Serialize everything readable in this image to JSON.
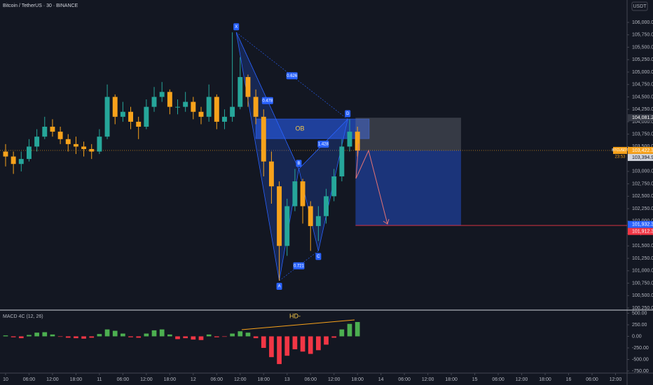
{
  "chart_data": {
    "type": "candlestick",
    "title": "Bitcoin / TetherUS · 30 · BINANCE",
    "currency": "USDT",
    "symbol": "BTCUSDT",
    "countdown": "23:53",
    "up_color": "#26a69a",
    "down_color": "#f7a21b",
    "x": [
      0,
      2,
      4,
      6,
      8,
      10,
      12,
      14,
      16,
      18,
      20,
      22,
      24,
      26,
      28,
      30,
      32,
      34,
      36,
      38,
      40,
      42,
      44,
      46,
      48,
      50,
      52,
      54,
      56,
      58,
      60,
      62,
      64,
      66,
      68,
      70,
      72,
      74,
      76,
      78,
      80,
      82,
      84,
      86,
      88,
      90
    ],
    "open": [
      103400,
      103300,
      103150,
      103250,
      103500,
      103700,
      103900,
      103800,
      103650,
      103550,
      103500,
      103450,
      103400,
      103700,
      104500,
      104100,
      104200,
      104000,
      103900,
      104300,
      104500,
      104600,
      104300,
      104300,
      104400,
      104200,
      104100,
      104500,
      104000,
      104100,
      104300,
      104900,
      104500,
      104100,
      103200,
      102700,
      101500,
      102300,
      102800,
      102300,
      101900,
      102100,
      102500,
      102900,
      103500,
      103800
    ],
    "high": [
      103550,
      103400,
      103400,
      103650,
      103850,
      104100,
      104050,
      103900,
      103750,
      103700,
      103600,
      103550,
      103850,
      104750,
      104550,
      104400,
      104300,
      104100,
      104450,
      104700,
      104800,
      104650,
      104450,
      104600,
      104500,
      104300,
      104750,
      104550,
      104250,
      105800,
      105300,
      104950,
      104650,
      104250,
      103400,
      102800,
      102450,
      103050,
      102850,
      102400,
      102300,
      102650,
      103050,
      103650,
      104050,
      103900
    ],
    "low": [
      103100,
      102950,
      103000,
      103200,
      103400,
      103650,
      103700,
      103550,
      103400,
      103350,
      103300,
      103250,
      103350,
      103650,
      103950,
      104000,
      103850,
      103650,
      103850,
      104200,
      104400,
      104150,
      104150,
      104200,
      104050,
      103950,
      104000,
      103850,
      103850,
      104000,
      104250,
      104300,
      103950,
      102900,
      102350,
      100800,
      101300,
      102200,
      101950,
      101400,
      101600,
      101950,
      102400,
      102800,
      103400,
      103300
    ],
    "close": [
      103300,
      103150,
      103250,
      103500,
      103700,
      103900,
      103800,
      103650,
      103550,
      103500,
      103450,
      103400,
      103700,
      104500,
      104100,
      104200,
      104000,
      103900,
      104300,
      104500,
      104600,
      104300,
      104300,
      104400,
      104200,
      104100,
      104500,
      104000,
      104100,
      104300,
      104900,
      104500,
      104100,
      103200,
      102700,
      101500,
      102300,
      102800,
      102300,
      101900,
      102100,
      102500,
      102900,
      103500,
      103800,
      103420
    ],
    "xlim": [
      -1.43,
      158.96
    ],
    "xticks": [
      {
        "value": 0,
        "label": "10"
      },
      {
        "value": 6,
        "label": "06:00"
      },
      {
        "value": 12,
        "label": "12:00"
      },
      {
        "value": 18,
        "label": "18:00"
      },
      {
        "value": 24,
        "label": "11"
      },
      {
        "value": 30,
        "label": "06:00"
      },
      {
        "value": 36,
        "label": "12:00"
      },
      {
        "value": 42,
        "label": "18:00"
      },
      {
        "value": 48,
        "label": "12"
      },
      {
        "value": 54,
        "label": "06:00"
      },
      {
        "value": 60,
        "label": "12:00"
      },
      {
        "value": 66,
        "label": "18:00"
      },
      {
        "value": 72,
        "label": "13"
      },
      {
        "value": 78,
        "label": "06:00"
      },
      {
        "value": 84,
        "label": "12:00"
      },
      {
        "value": 90,
        "label": "18:00"
      },
      {
        "value": 96,
        "label": "14"
      },
      {
        "value": 102,
        "label": "06:00"
      },
      {
        "value": 108,
        "label": "12:00"
      },
      {
        "value": 114,
        "label": "18:00"
      },
      {
        "value": 120,
        "label": "15"
      },
      {
        "value": 126,
        "label": "06:00"
      },
      {
        "value": 132,
        "label": "12:00"
      },
      {
        "value": 138,
        "label": "18:00"
      },
      {
        "value": 144,
        "label": "16"
      },
      {
        "value": 150,
        "label": "06:00"
      },
      {
        "value": 156,
        "label": "12:00"
      }
    ],
    "ylim": [
      100208,
      106451
    ],
    "yticks": [
      {
        "value": 100250,
        "label": "100,250.00"
      },
      {
        "value": 100500,
        "label": "100,500.00"
      },
      {
        "value": 100750,
        "label": "100,750.00"
      },
      {
        "value": 101000,
        "label": "101,000.00"
      },
      {
        "value": 101250,
        "label": "101,250.00"
      },
      {
        "value": 101500,
        "label": "101,500.00"
      },
      {
        "value": 101750,
        "label": "101,750.00"
      },
      {
        "value": 102000,
        "label": "102,000.00"
      },
      {
        "value": 102250,
        "label": "102,250.00"
      },
      {
        "value": 102500,
        "label": "102,500.00"
      },
      {
        "value": 102750,
        "label": "102,750.00"
      },
      {
        "value": 103000,
        "label": "103,000.00"
      },
      {
        "value": 103250,
        "label": "103,250.00"
      },
      {
        "value": 103500,
        "label": "103,500.00"
      },
      {
        "value": 103750,
        "label": "103,750.00"
      },
      {
        "value": 104000,
        "label": "104,000.00"
      },
      {
        "value": 104250,
        "label": "104,250.00"
      },
      {
        "value": 104500,
        "label": "104,500.00"
      },
      {
        "value": 104750,
        "label": "104,750.00"
      },
      {
        "value": 105000,
        "label": "105,000.00"
      },
      {
        "value": 105250,
        "label": "105,250.00"
      },
      {
        "value": 105500,
        "label": "105,500.00"
      },
      {
        "value": 105750,
        "label": "105,750.00"
      },
      {
        "value": 106000,
        "label": "106,000.00"
      }
    ],
    "price_labels": [
      {
        "value": 104081.21,
        "label": "104,081.21",
        "color": "#363a45"
      },
      {
        "value": 103422.3,
        "label": "103,422.30",
        "color": "#f7a21b"
      },
      {
        "value": 103394.91,
        "label": "103,394.91",
        "color": "#d1d4dc"
      },
      {
        "value": 101932.39,
        "label": "101,932.39",
        "color": "#2962ff"
      },
      {
        "value": 101912.39,
        "label": "101,912.39",
        "color": "#f23645"
      }
    ],
    "pattern": {
      "color": "#2962ff",
      "points": [
        {
          "label": "X",
          "x": 59,
          "price": 105800
        },
        {
          "label": "A",
          "x": 70,
          "price": 100800
        },
        {
          "label": "B",
          "x": 75,
          "price": 103050
        },
        {
          "label": "C",
          "x": 80,
          "price": 101400
        },
        {
          "label": "D",
          "x": 87.5,
          "price": 104050
        }
      ],
      "ratios": [
        "0.626",
        "0.478",
        "1.428",
        "0.721"
      ]
    },
    "order_block": {
      "label": "OB",
      "x": [
        64,
        93
      ],
      "price": [
        103660,
        104055
      ]
    },
    "position": {
      "x": [
        89.5,
        116.5
      ],
      "entry": 103422.3,
      "stop": 104081.21,
      "target": 101912.39
    },
    "indicator": {
      "type": "bar",
      "title": "MACD 4C (12, 26)",
      "annotation": "HD-",
      "up_color": "#4caf50",
      "down_color": "#f23645",
      "values": [
        20,
        -20,
        -40,
        30,
        80,
        90,
        40,
        -10,
        -30,
        -40,
        -50,
        -30,
        50,
        150,
        120,
        60,
        -20,
        -30,
        60,
        130,
        150,
        40,
        -60,
        -40,
        -70,
        -80,
        40,
        -20,
        -10,
        60,
        110,
        80,
        -40,
        -250,
        -450,
        -600,
        -420,
        -280,
        -330,
        -380,
        -300,
        -180,
        -30,
        150,
        270,
        310
      ],
      "ylim": [
        -841,
        568
      ],
      "yticks": [
        {
          "value": 500,
          "label": "500.00"
        },
        {
          "value": 250,
          "label": "250.00"
        },
        {
          "value": 0,
          "label": "0.00"
        },
        {
          "value": -250,
          "label": "-250.00"
        },
        {
          "value": -500,
          "label": "-500.00"
        },
        {
          "value": -750,
          "label": "-750.00"
        }
      ]
    }
  }
}
